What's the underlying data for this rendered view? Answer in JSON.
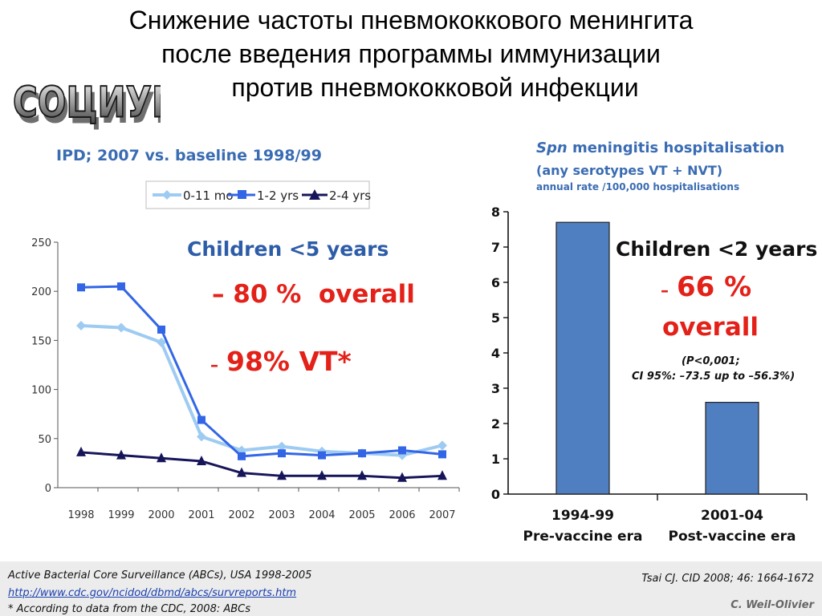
{
  "title": {
    "line1": "Снижение частоты пневмококкового менингита",
    "line2": "после введения программы иммунизации",
    "line3": "против пневмококковой инфекции"
  },
  "logo": {
    "text": "СОЦИУМ"
  },
  "colors": {
    "blue_title": "#3a6cb3",
    "red": "#e32119",
    "light_blue_line": "#9ecbf2",
    "mid_blue_line": "#3366e6",
    "navy_line": "#17155a",
    "bar_fill": "#4f7fc0"
  },
  "left_panel": {
    "header": "IPD; 2007 vs. baseline 1998/99",
    "children_label": "Children <5 years",
    "stat1": "– 80 %  overall",
    "stat2_dash": "–",
    "stat2": "98% VT*"
  },
  "right_panel": {
    "header_italic": "Spn",
    "header_rest": " meningitis hospitalisation",
    "subheader": "(any serotypes VT + NVT)",
    "subheader2": "annual rate /100,000 hospitalisations",
    "children_label": "Children <2 years",
    "stat_dash": "–",
    "stat_pct": "66 %",
    "stat_overall": "overall",
    "pvalue": "(P<0,001;",
    "ci": "CI 95%: –73.5 up to –56.3%)"
  },
  "chart_data": [
    {
      "type": "line",
      "x": [
        "1998",
        "1999",
        "2000",
        "2001",
        "2002",
        "2003",
        "2004",
        "2005",
        "2006",
        "2007"
      ],
      "series": [
        {
          "name": "0-11 mo",
          "values": [
            165,
            163,
            148,
            52,
            38,
            42,
            37,
            35,
            33,
            43
          ]
        },
        {
          "name": "1-2 yrs",
          "values": [
            204,
            205,
            161,
            69,
            32,
            35,
            33,
            35,
            38,
            34
          ]
        },
        {
          "name": "2-4 yrs",
          "values": [
            36,
            33,
            30,
            27,
            15,
            12,
            12,
            12,
            10,
            12
          ]
        }
      ],
      "ylim": [
        0,
        250
      ],
      "yticks": [
        "0",
        "50",
        "100",
        "150",
        "200",
        "250"
      ],
      "legend": "top",
      "grid": false
    },
    {
      "type": "bar",
      "categories": [
        "1994-99",
        "2001-04"
      ],
      "category_sublabels": [
        "Pre-vaccine era",
        "Post-vaccine era"
      ],
      "values": [
        7.7,
        2.6
      ],
      "ylim": [
        0,
        8
      ],
      "yticks": [
        "0",
        "1",
        "2",
        "3",
        "4",
        "5",
        "6",
        "7",
        "8"
      ],
      "grid": false
    }
  ],
  "footer": {
    "line1": "Active Bacterial Core Surveillance (ABCs), USA 1998-2005",
    "link": "http://www.cdc.gov/ncidod/dbmd/abcs/survreports.htm",
    "line3": "* According to data from the CDC, 2008: ABCs",
    "citation": "Tsai CJ. CID 2008; 46: 1664-1672",
    "author": "C. Weil-Olivier"
  }
}
